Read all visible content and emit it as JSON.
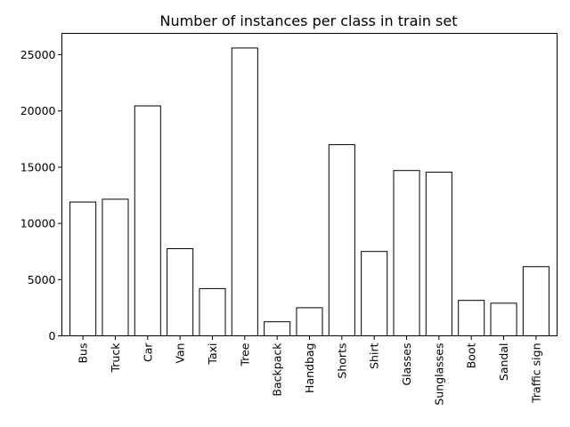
{
  "chart_data": {
    "type": "bar",
    "title": "Number of instances per class in train set",
    "xlabel": "",
    "ylabel": "",
    "categories": [
      "Bus",
      "Truck",
      "Car",
      "Van",
      "Taxi",
      "Tree",
      "Backpack",
      "Handbag",
      "Shorts",
      "Shirt",
      "Glasses",
      "Sunglasses",
      "Boot",
      "Sandal",
      "Traffic sign"
    ],
    "values": [
      11900,
      12150,
      20450,
      7750,
      4200,
      25600,
      1250,
      2500,
      17000,
      7500,
      14700,
      14550,
      3150,
      2900,
      6150
    ],
    "ylim": [
      0,
      26900
    ],
    "yticks": [
      0,
      5000,
      10000,
      15000,
      20000,
      25000
    ],
    "grid": false,
    "legend": "none",
    "colors": {
      "bar_fill": "#ffffff",
      "bar_edge": "#000000",
      "axes": "#000000"
    }
  }
}
